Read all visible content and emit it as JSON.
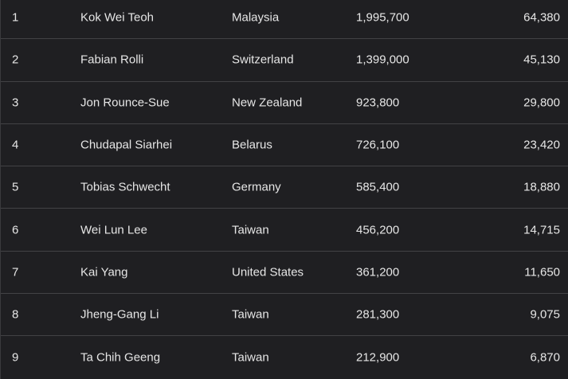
{
  "rows": [
    {
      "rank": "1",
      "name": "Kok Wei Teoh",
      "country": "Malaysia",
      "score": "1,995,700",
      "value": "64,380"
    },
    {
      "rank": "2",
      "name": "Fabian Rolli",
      "country": "Switzerland",
      "score": "1,399,000",
      "value": "45,130"
    },
    {
      "rank": "3",
      "name": "Jon Rounce-Sue",
      "country": "New Zealand",
      "score": "923,800",
      "value": "29,800"
    },
    {
      "rank": "4",
      "name": "Chudapal Siarhei",
      "country": "Belarus",
      "score": "726,100",
      "value": "23,420"
    },
    {
      "rank": "5",
      "name": "Tobias Schwecht",
      "country": "Germany",
      "score": "585,400",
      "value": "18,880"
    },
    {
      "rank": "6",
      "name": "Wei Lun Lee",
      "country": "Taiwan",
      "score": "456,200",
      "value": "14,715"
    },
    {
      "rank": "7",
      "name": "Kai Yang",
      "country": "United States",
      "score": "361,200",
      "value": "11,650"
    },
    {
      "rank": "8",
      "name": "Jheng-Gang Li",
      "country": "Taiwan",
      "score": "281,300",
      "value": "9,075"
    },
    {
      "rank": "9",
      "name": "Ta Chih Geeng",
      "country": "Taiwan",
      "score": "212,900",
      "value": "6,870"
    }
  ]
}
